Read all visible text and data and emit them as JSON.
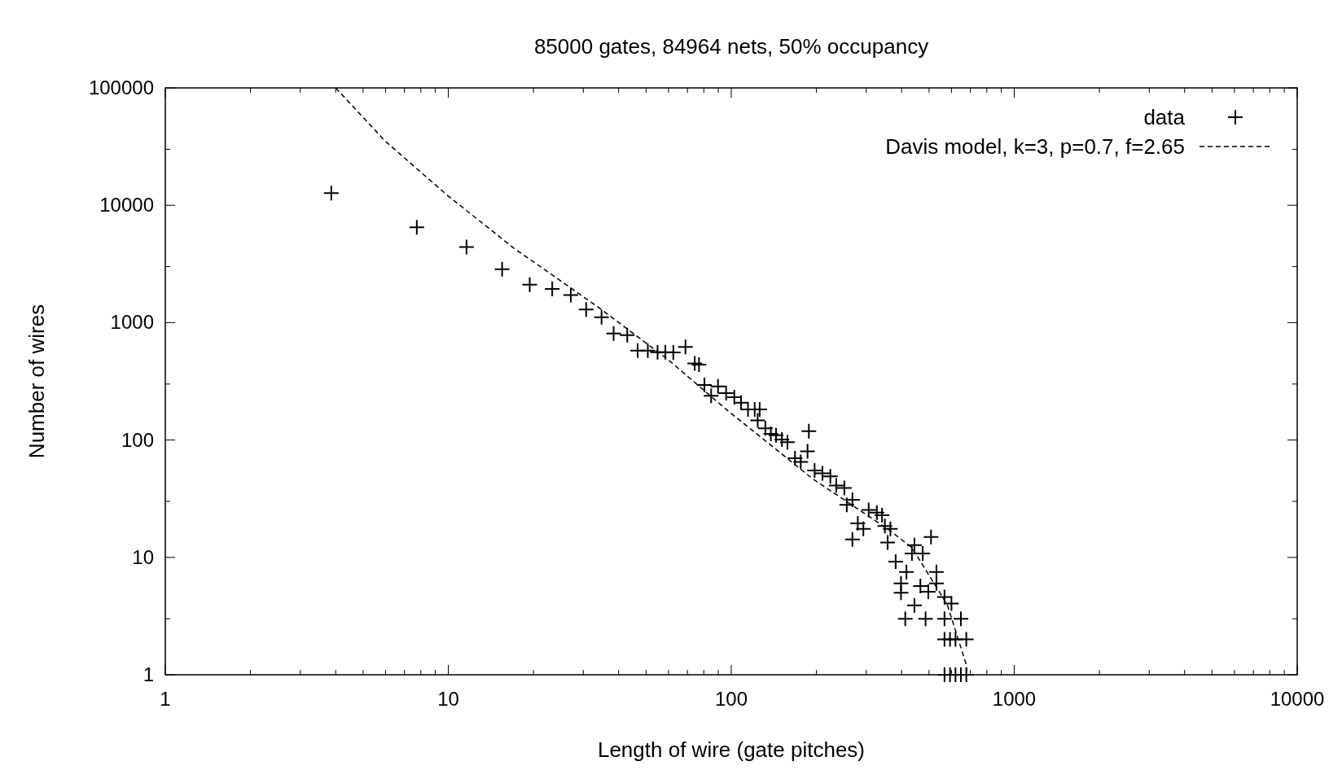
{
  "chart_data": {
    "type": "scatter",
    "title": "85000 gates, 84964 nets, 50% occupancy",
    "xlabel": "Length of wire (gate pitches)",
    "ylabel": "Number of wires",
    "log": "xy",
    "grid": false,
    "legend": "top right",
    "xlim": [
      1,
      10000
    ],
    "ylim": [
      1,
      100000
    ],
    "xticks": [
      1,
      {
        "value": 2,
        "label": null
      },
      {
        "value": 3,
        "label": null
      },
      {
        "value": 4,
        "label": null
      },
      {
        "value": 5,
        "label": null
      },
      {
        "value": 6,
        "label": null
      },
      {
        "value": 7,
        "label": null
      },
      {
        "value": 8,
        "label": null
      },
      {
        "value": 9,
        "label": null
      },
      10,
      {
        "value": 20,
        "label": null
      },
      {
        "value": 30,
        "label": null
      },
      {
        "value": 40,
        "label": null
      },
      {
        "value": 50,
        "label": null
      },
      {
        "value": 60,
        "label": null
      },
      {
        "value": 70,
        "label": null
      },
      {
        "value": 80,
        "label": null
      },
      {
        "value": 90,
        "label": null
      },
      100,
      {
        "value": 200,
        "label": null
      },
      {
        "value": 300,
        "label": null
      },
      {
        "value": 400,
        "label": null
      },
      {
        "value": 500,
        "label": null
      },
      {
        "value": 600,
        "label": null
      },
      {
        "value": 700,
        "label": null
      },
      {
        "value": 800,
        "label": null
      },
      {
        "value": 900,
        "label": null
      },
      1000,
      {
        "value": 2000,
        "label": null
      },
      {
        "value": 3000,
        "label": null
      },
      {
        "value": 4000,
        "label": null
      },
      {
        "value": 5000,
        "label": null
      },
      {
        "value": 6000,
        "label": null
      },
      {
        "value": 7000,
        "label": null
      },
      {
        "value": 8000,
        "label": null
      },
      {
        "value": 9000,
        "label": null
      },
      10000
    ],
    "yticks": [
      1,
      {
        "value": 3,
        "label": null
      },
      10,
      {
        "value": 30,
        "label": null
      },
      100,
      {
        "value": 300,
        "label": null
      },
      1000,
      {
        "value": 3000,
        "label": null
      },
      10000,
      {
        "value": 30000,
        "label": null
      },
      100000
    ],
    "series": [
      {
        "name": "data",
        "marker": "cross",
        "color": "#000000",
        "x": [
          3.86,
          7.74,
          11.6,
          15.5,
          19.4,
          23.3,
          27.1,
          30.7,
          34.8,
          38.4,
          42.9,
          46.7,
          50.7,
          54.9,
          58.5,
          62.4,
          68.9,
          74.3,
          76.9,
          80.4,
          84.9,
          89.8,
          95.9,
          102.5,
          108.3,
          114.6,
          121,
          126,
          124,
          132,
          138,
          144,
          151,
          158,
          188,
          168,
          176,
          186,
          197,
          210,
          224,
          235,
          251,
          256,
          268,
          280,
          268,
          293,
          306,
          327,
          341,
          349,
          365,
          357,
          381,
          398,
          398,
          412,
          416,
          435,
          444,
          466,
          444,
          486,
          475,
          508,
          497,
          531,
          531,
          567,
          600,
          567,
          648,
          567,
          593,
          620,
          677,
          567,
          593,
          620,
          648,
          677
        ],
        "values": [
          12700,
          6490,
          4410,
          2850,
          2110,
          1940,
          1720,
          1295,
          1113,
          809,
          783,
          578,
          578,
          560,
          560,
          557,
          620,
          450,
          439,
          294,
          238,
          286,
          251,
          232,
          208,
          182,
          182,
          182,
          147,
          126,
          113,
          110,
          101,
          96,
          119,
          70,
          65,
          80,
          55,
          52,
          49,
          41,
          39,
          28,
          31,
          19.5,
          14.2,
          17.5,
          25.4,
          24.1,
          22.9,
          18.5,
          17.5,
          13.4,
          9.2,
          6,
          5,
          3,
          7.5,
          10.8,
          12.7,
          5.7,
          3.9,
          3,
          10.8,
          14.9,
          5.1,
          7.5,
          6,
          4.6,
          4.05,
          3,
          3,
          2,
          2,
          2,
          2,
          1,
          1,
          1,
          1,
          1
        ]
      },
      {
        "name": "Davis model, k=3, p=0.7, f=2.65",
        "type": "line",
        "line_style": "dashed",
        "color": "#000000",
        "x": [
          4,
          5.98,
          9.88,
          17,
          34.1,
          59.5,
          96.9,
          194,
          363,
          435,
          580,
          677,
          679
        ],
        "values": [
          100000,
          35300,
          12270,
          4335,
          1340,
          489,
          179,
          46.7,
          17,
          12.1,
          3.95,
          1.22,
          1
        ]
      }
    ]
  }
}
